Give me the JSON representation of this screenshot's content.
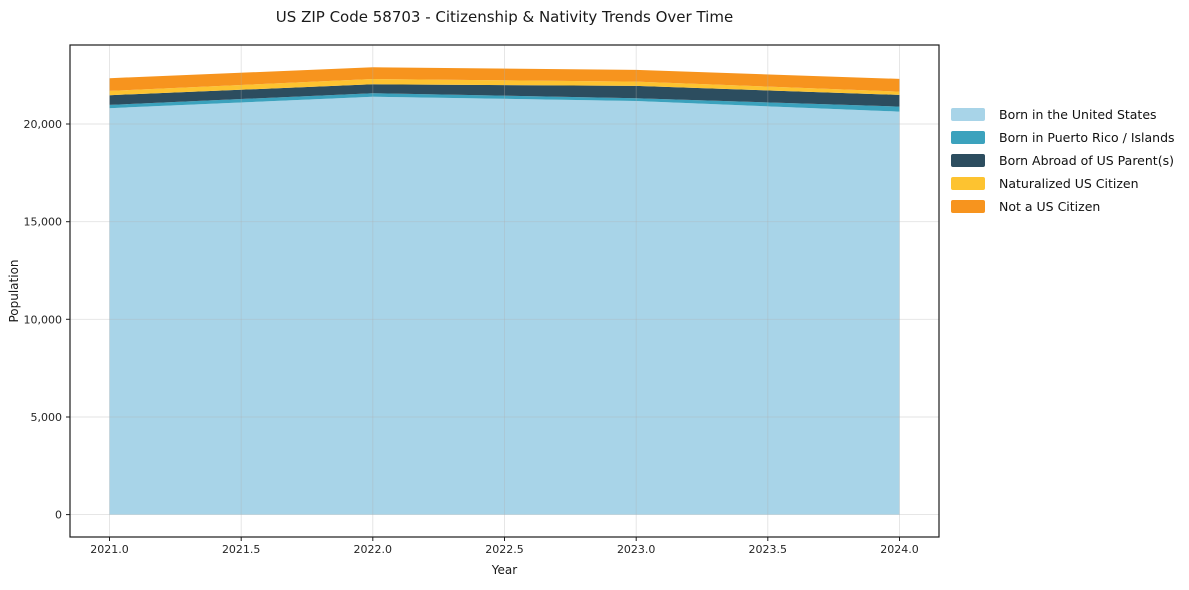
{
  "chart_data": {
    "type": "area",
    "stacked": true,
    "title": "US ZIP Code 58703 - Citizenship & Nativity Trends Over Time",
    "xlabel": "Year",
    "ylabel": "Population",
    "x": [
      2021,
      2022,
      2023,
      2024
    ],
    "series": [
      {
        "name": "Born in the United States",
        "color": "#a8d4e8",
        "values": [
          20810,
          21400,
          21180,
          20635
        ]
      },
      {
        "name": "Born in Puerto Rico / Islands",
        "color": "#3ba2bd",
        "values": [
          170,
          175,
          140,
          255
        ]
      },
      {
        "name": "Born Abroad of US Parent(s)",
        "color": "#2c4d5f",
        "values": [
          495,
          460,
          630,
          600
        ]
      },
      {
        "name": "Naturalized US Citizen",
        "color": "#fdc330",
        "values": [
          220,
          270,
          220,
          170
        ]
      },
      {
        "name": "Not a US Citizen",
        "color": "#f7941e",
        "values": [
          650,
          600,
          600,
          650
        ]
      }
    ],
    "stacked_totals": [
      22345,
      22905,
      22770,
      22310
    ],
    "xlim": [
      2020.85,
      2024.15
    ],
    "ylim": [
      -1145,
      24045
    ],
    "x_ticks": [
      2021.0,
      2021.5,
      2022.0,
      2022.5,
      2023.0,
      2023.5,
      2024.0
    ],
    "x_tick_labels": [
      "2021.0",
      "2021.5",
      "2022.0",
      "2022.5",
      "2023.0",
      "2023.5",
      "2024.0"
    ],
    "y_ticks": [
      0,
      5000,
      10000,
      15000,
      20000
    ],
    "y_tick_labels": [
      "0",
      "5,000",
      "10,000",
      "15,000",
      "20,000"
    ],
    "grid": true,
    "legend_position": "right-outside",
    "colors": {
      "background": "#ffffff",
      "spine": "#1c1c1c",
      "gridline": "rgba(176,176,176,0.35)",
      "tick": "#1c1c1c"
    }
  }
}
